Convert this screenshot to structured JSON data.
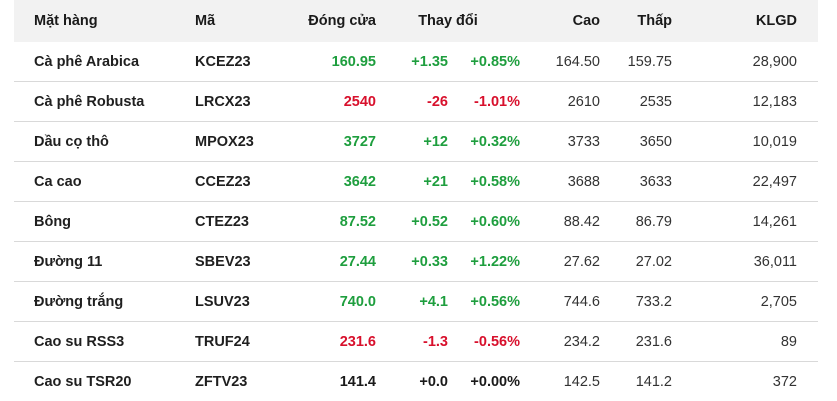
{
  "table": {
    "headers": {
      "name": "Mặt hàng",
      "code": "Mã",
      "close": "Đóng cửa",
      "change": "Thay đổi",
      "high": "Cao",
      "low": "Thấp",
      "volume": "KLGD"
    },
    "rows": [
      {
        "name": "Cà phê Arabica",
        "code": "KCEZ23",
        "close": "160.95",
        "change": "+1.35",
        "pct": "+0.85%",
        "high": "164.50",
        "low": "159.75",
        "volume": "28,900",
        "trend": "up"
      },
      {
        "name": "Cà phê Robusta",
        "code": "LRCX23",
        "close": "2540",
        "change": "-26",
        "pct": "-1.01%",
        "high": "2610",
        "low": "2535",
        "volume": "12,183",
        "trend": "down"
      },
      {
        "name": "Dầu cọ thô",
        "code": "MPOX23",
        "close": "3727",
        "change": "+12",
        "pct": "+0.32%",
        "high": "3733",
        "low": "3650",
        "volume": "10,019",
        "trend": "up"
      },
      {
        "name": "Ca cao",
        "code": "CCEZ23",
        "close": "3642",
        "change": "+21",
        "pct": "+0.58%",
        "high": "3688",
        "low": "3633",
        "volume": "22,497",
        "trend": "up"
      },
      {
        "name": "Bông",
        "code": "CTEZ23",
        "close": "87.52",
        "change": "+0.52",
        "pct": "+0.60%",
        "high": "88.42",
        "low": "86.79",
        "volume": "14,261",
        "trend": "up"
      },
      {
        "name": "Đường 11",
        "code": "SBEV23",
        "close": "27.44",
        "change": "+0.33",
        "pct": "+1.22%",
        "high": "27.62",
        "low": "27.02",
        "volume": "36,011",
        "trend": "up"
      },
      {
        "name": "Đường trắng",
        "code": "LSUV23",
        "close": "740.0",
        "change": "+4.1",
        "pct": "+0.56%",
        "high": "744.6",
        "low": "733.2",
        "volume": "2,705",
        "trend": "up"
      },
      {
        "name": "Cao su RSS3",
        "code": "TRUF24",
        "close": "231.6",
        "change": "-1.3",
        "pct": "-0.56%",
        "high": "234.2",
        "low": "231.6",
        "volume": "89",
        "trend": "down"
      },
      {
        "name": "Cao su TSR20",
        "code": "ZFTV23",
        "close": "141.4",
        "change": "+0.0",
        "pct": "+0.00%",
        "high": "142.5",
        "low": "141.2",
        "volume": "372",
        "trend": "flat"
      }
    ]
  },
  "colors": {
    "up": "#1e9e3e",
    "down": "#d8102c",
    "flat": "#1a1a1a",
    "header_bg": "#f2f2f2",
    "row_divider": "#d9d9d9"
  }
}
